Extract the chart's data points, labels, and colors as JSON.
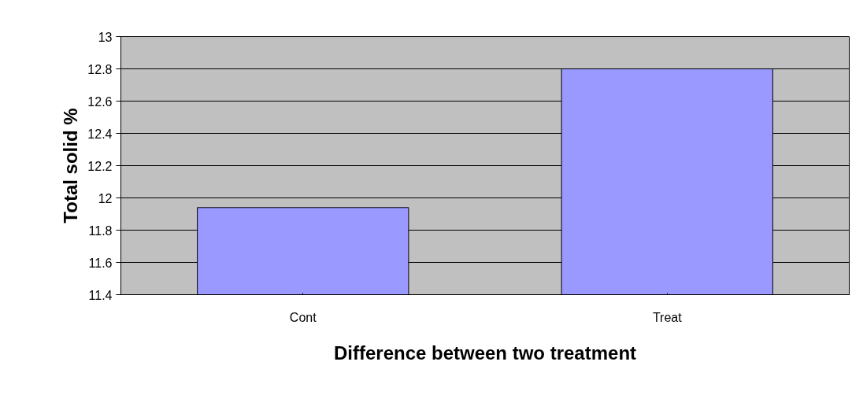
{
  "chart_data": {
    "type": "bar",
    "categories": [
      "Cont",
      "Treat"
    ],
    "values": [
      11.94,
      12.8
    ],
    "color": "#9999ff",
    "xlabel": "Difference between two treatment",
    "ylabel": "Total solid %",
    "ylim": [
      11.4,
      13
    ],
    "yticks": [
      11.4,
      11.6,
      11.8,
      12,
      12.2,
      12.4,
      12.6,
      12.8,
      13
    ],
    "grid": "y"
  }
}
